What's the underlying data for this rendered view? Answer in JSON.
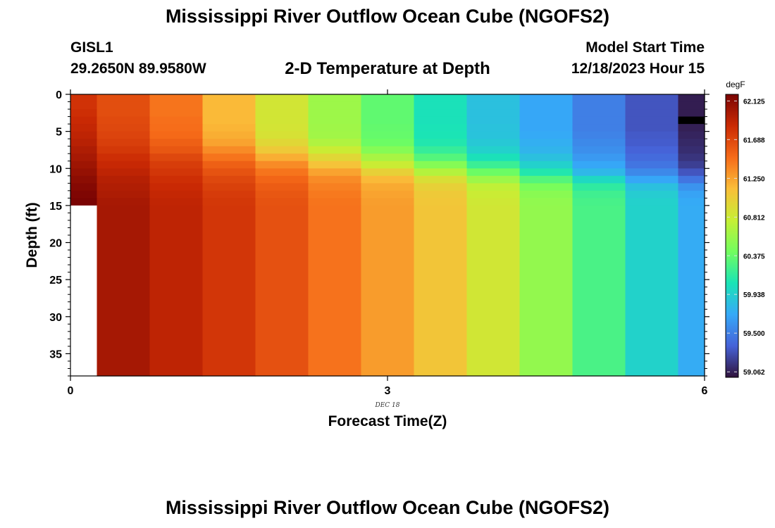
{
  "header": {
    "title": "Mississippi River Outflow Ocean Cube (NGOFS2)",
    "station_id": "GISL1",
    "station_coords": "29.2650N  89.9580W",
    "subtitle": "2-D Temperature at Depth",
    "model_start_label": "Model Start Time",
    "model_start_value": "12/18/2023 Hour 15"
  },
  "footer": {
    "title": "Mississippi River Outflow Ocean Cube (NGOFS2)"
  },
  "colors": {
    "missing_high": "#ffffff",
    "missing_low": "#000000",
    "colormap": [
      "#30123b",
      "#4662d8",
      "#36a9f8",
      "#1ae4b6",
      "#72fe5e",
      "#c7ef34",
      "#fabe39",
      "#f66b19",
      "#ca2a04",
      "#7a0403"
    ]
  },
  "chart_data": {
    "type": "heatmap",
    "xlabel": "Forecast Time(Z)",
    "x_sublabel": "DEC 18",
    "ylabel": "Depth (ft)",
    "xlim": [
      0,
      6
    ],
    "ylim": [
      38,
      0
    ],
    "x_ticks": [
      0,
      3,
      6
    ],
    "y_ticks": [
      0,
      5,
      10,
      15,
      20,
      25,
      30,
      35
    ],
    "colorbar": {
      "label": "degF",
      "min": 59.0,
      "max": 62.2,
      "ticks": [
        "62.125",
        "61.688",
        "61.250",
        "60.812",
        "60.375",
        "59.938",
        "59.500",
        "59.062"
      ]
    },
    "x_centers": [
      0,
      0.5,
      1,
      1.5,
      2,
      2.5,
      3,
      3.5,
      4,
      4.5,
      5,
      5.5,
      6
    ],
    "y_edges": [
      0,
      1,
      2,
      3,
      4,
      5,
      6,
      7,
      8,
      9,
      10,
      11,
      12,
      13,
      14,
      15,
      38
    ],
    "values": [
      [
        61.8,
        61.65,
        61.45,
        61.15,
        60.85,
        60.6,
        60.35,
        60.05,
        59.85,
        59.7,
        59.5,
        59.3,
        59.05
      ],
      [
        61.8,
        61.65,
        61.45,
        61.15,
        60.85,
        60.6,
        60.35,
        60.05,
        59.85,
        59.7,
        59.5,
        59.3,
        59.05
      ],
      [
        61.82,
        61.65,
        61.45,
        61.15,
        60.85,
        60.6,
        60.35,
        60.05,
        59.85,
        59.7,
        59.5,
        59.3,
        59.05
      ],
      [
        61.85,
        61.67,
        61.47,
        61.15,
        60.85,
        60.6,
        60.35,
        60.05,
        59.85,
        59.7,
        59.5,
        59.3,
        null
      ],
      [
        61.87,
        61.68,
        61.48,
        61.17,
        60.86,
        60.61,
        60.36,
        60.06,
        59.86,
        59.7,
        59.5,
        59.3,
        59.06
      ],
      [
        61.9,
        61.7,
        61.5,
        61.2,
        60.88,
        60.62,
        60.37,
        60.07,
        59.87,
        59.72,
        59.52,
        59.32,
        59.08
      ],
      [
        61.93,
        61.73,
        61.55,
        61.25,
        60.95,
        60.68,
        60.4,
        60.1,
        59.9,
        59.75,
        59.55,
        59.33,
        59.1
      ],
      [
        61.97,
        61.77,
        61.6,
        61.35,
        61.05,
        60.8,
        60.5,
        60.18,
        59.95,
        59.78,
        59.58,
        59.36,
        59.12
      ],
      [
        62.0,
        61.82,
        61.68,
        61.45,
        61.2,
        60.95,
        60.65,
        60.3,
        60.05,
        59.85,
        59.63,
        59.4,
        59.15
      ],
      [
        62.04,
        61.86,
        61.74,
        61.55,
        61.35,
        61.1,
        60.8,
        60.5,
        60.2,
        59.95,
        59.7,
        59.45,
        59.2
      ],
      [
        62.08,
        61.9,
        61.78,
        61.62,
        61.45,
        61.25,
        61.0,
        60.7,
        60.4,
        60.1,
        59.8,
        59.55,
        59.3
      ],
      [
        62.12,
        61.94,
        61.82,
        61.68,
        61.52,
        61.35,
        61.15,
        60.9,
        60.6,
        60.3,
        60.0,
        59.7,
        59.45
      ],
      [
        62.15,
        61.96,
        61.85,
        61.72,
        61.57,
        61.4,
        61.22,
        61.0,
        60.75,
        60.45,
        60.15,
        59.85,
        59.6
      ],
      [
        62.18,
        61.98,
        61.87,
        61.75,
        61.6,
        61.43,
        61.25,
        61.05,
        60.8,
        60.52,
        60.22,
        59.92,
        59.68
      ],
      [
        62.2,
        62.0,
        61.89,
        61.77,
        61.62,
        61.45,
        61.27,
        61.07,
        60.83,
        60.55,
        60.25,
        59.95,
        59.72
      ],
      [
        null,
        62.01,
        61.9,
        61.78,
        61.63,
        61.46,
        61.28,
        61.08,
        60.84,
        60.56,
        60.26,
        59.96,
        59.73
      ]
    ]
  }
}
